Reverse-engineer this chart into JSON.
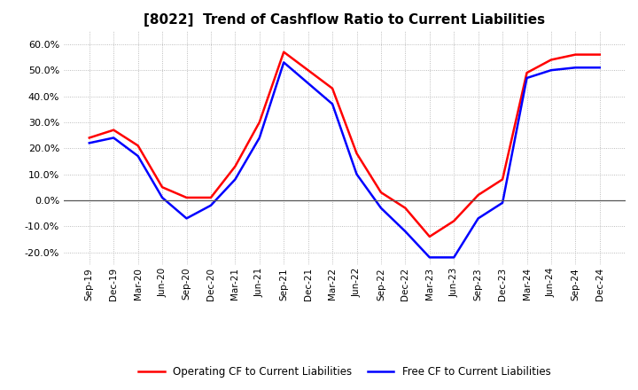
{
  "title": "[8022]  Trend of Cashflow Ratio to Current Liabilities",
  "title_fontsize": 11,
  "x_labels": [
    "Sep-19",
    "Dec-19",
    "Mar-20",
    "Jun-20",
    "Sep-20",
    "Dec-20",
    "Mar-21",
    "Jun-21",
    "Sep-21",
    "Dec-21",
    "Mar-22",
    "Jun-22",
    "Sep-22",
    "Dec-22",
    "Mar-23",
    "Jun-23",
    "Sep-23",
    "Dec-23",
    "Mar-24",
    "Jun-24",
    "Sep-24",
    "Dec-24"
  ],
  "ylim": [
    -0.25,
    0.65
  ],
  "yticks": [
    -0.2,
    -0.1,
    0.0,
    0.1,
    0.2,
    0.3,
    0.4,
    0.5,
    0.6
  ],
  "operating_cf": [
    0.24,
    0.27,
    0.21,
    0.05,
    0.01,
    0.01,
    0.13,
    0.3,
    0.57,
    0.5,
    0.43,
    0.18,
    0.03,
    -0.03,
    -0.14,
    -0.08,
    0.02,
    0.08,
    0.49,
    0.54,
    0.56,
    0.56
  ],
  "free_cf": [
    0.22,
    0.24,
    0.17,
    0.01,
    -0.07,
    -0.02,
    0.08,
    0.24,
    0.53,
    0.45,
    0.37,
    0.1,
    -0.03,
    -0.12,
    -0.22,
    -0.22,
    -0.07,
    -0.01,
    0.47,
    0.5,
    0.51,
    0.51
  ],
  "operating_color": "#ff0000",
  "free_color": "#0000ff",
  "background_color": "#ffffff",
  "grid_color": "#aaaaaa",
  "zero_line_color": "#555555",
  "legend_labels": [
    "Operating CF to Current Liabilities",
    "Free CF to Current Liabilities"
  ]
}
